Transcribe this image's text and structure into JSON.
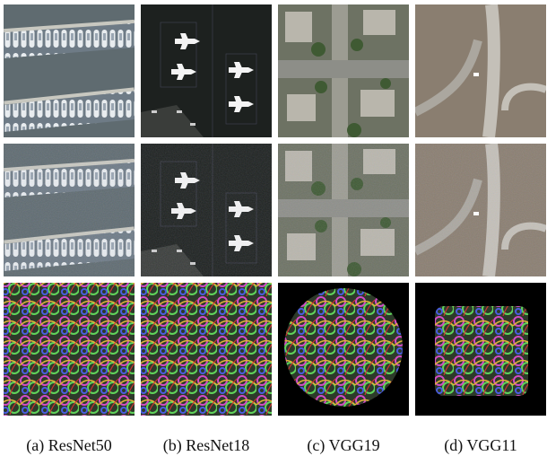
{
  "captions": [
    "(a) ResNet50",
    "(b) ResNet18",
    "(c) VGG19",
    "(d) VGG11"
  ]
}
